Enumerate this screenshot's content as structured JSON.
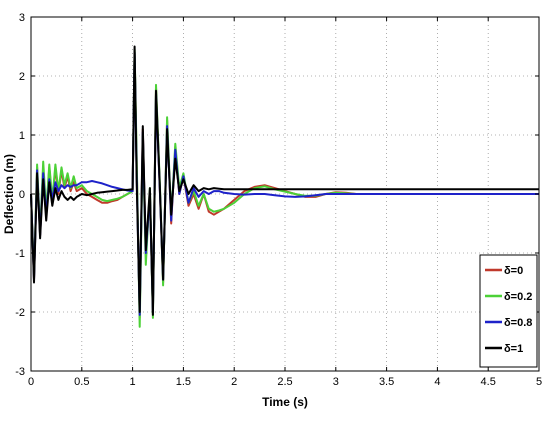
{
  "chart_data": {
    "type": "line",
    "title": "",
    "xlabel": "Time (s)",
    "ylabel": "Deflection (m)",
    "xlim": [
      0,
      5
    ],
    "ylim": [
      -3,
      3
    ],
    "xticks": [
      0,
      0.5,
      1,
      1.5,
      2,
      2.5,
      3,
      3.5,
      4,
      4.5,
      5
    ],
    "xtick_labels": [
      "0",
      "0.5",
      "1",
      "1.5",
      "2",
      "2.5",
      "3",
      "3.5",
      "4",
      "4.5",
      "5"
    ],
    "yticks": [
      -3,
      -2,
      -1,
      0,
      1,
      2,
      3
    ],
    "ytick_labels": [
      "-3",
      "-2",
      "-1",
      "0",
      "1",
      "2",
      "3"
    ],
    "grid": true,
    "legend_position": "bottom-right",
    "series": [
      {
        "name": "δ=0",
        "color": "#c0392b",
        "x": [
          0,
          0.03,
          0.06,
          0.09,
          0.12,
          0.15,
          0.18,
          0.21,
          0.24,
          0.27,
          0.3,
          0.33,
          0.36,
          0.39,
          0.42,
          0.45,
          0.5,
          0.55,
          0.6,
          0.65,
          0.7,
          0.75,
          0.8,
          0.85,
          0.9,
          0.95,
          1.0,
          1.02,
          1.04,
          1.07,
          1.1,
          1.13,
          1.17,
          1.2,
          1.23,
          1.27,
          1.3,
          1.34,
          1.38,
          1.42,
          1.46,
          1.5,
          1.55,
          1.6,
          1.65,
          1.7,
          1.75,
          1.8,
          1.85,
          1.9,
          2.0,
          2.1,
          2.2,
          2.3,
          2.4,
          2.5,
          2.6,
          2.7,
          2.8,
          2.9,
          3.0,
          3.1,
          3.2,
          3.3,
          3.5,
          4.0,
          4.5,
          5.0
        ],
        "y": [
          0,
          -1.45,
          0.45,
          -0.7,
          0.45,
          -0.35,
          0.45,
          -0.15,
          0.45,
          0.0,
          0.4,
          0.1,
          0.3,
          0.05,
          0.2,
          0.05,
          0.1,
          0.0,
          -0.05,
          -0.1,
          -0.15,
          -0.15,
          -0.12,
          -0.1,
          -0.05,
          0.0,
          0.05,
          2.4,
          0.5,
          -2.1,
          1.1,
          -1.0,
          0.0,
          -2.0,
          1.8,
          0.0,
          -1.5,
          1.25,
          -0.5,
          0.8,
          0.0,
          0.3,
          -0.2,
          0.0,
          -0.25,
          0.0,
          -0.3,
          -0.35,
          -0.3,
          -0.25,
          -0.1,
          0.05,
          0.12,
          0.15,
          0.1,
          0.05,
          0.0,
          -0.05,
          -0.05,
          0.0,
          0.03,
          0.02,
          0.0,
          0.0,
          0.0,
          0.0,
          0.0,
          0.0
        ]
      },
      {
        "name": "δ=0.2",
        "color": "#4cd137",
        "x": [
          0,
          0.03,
          0.06,
          0.09,
          0.12,
          0.15,
          0.18,
          0.21,
          0.24,
          0.27,
          0.3,
          0.33,
          0.36,
          0.39,
          0.42,
          0.45,
          0.5,
          0.55,
          0.6,
          0.65,
          0.7,
          0.75,
          0.8,
          0.85,
          0.9,
          0.95,
          1.0,
          1.02,
          1.04,
          1.07,
          1.1,
          1.13,
          1.17,
          1.2,
          1.23,
          1.27,
          1.3,
          1.34,
          1.38,
          1.42,
          1.46,
          1.5,
          1.55,
          1.6,
          1.65,
          1.7,
          1.75,
          1.8,
          1.85,
          1.9,
          2.0,
          2.1,
          2.2,
          2.3,
          2.4,
          2.5,
          2.6,
          2.7,
          2.8,
          2.9,
          3.0,
          3.1,
          3.2,
          3.3,
          3.5,
          4.0,
          4.5,
          5.0
        ],
        "y": [
          0,
          -1.4,
          0.5,
          -0.65,
          0.55,
          -0.3,
          0.5,
          -0.1,
          0.5,
          0.05,
          0.45,
          0.15,
          0.35,
          0.1,
          0.3,
          0.1,
          0.15,
          0.05,
          0.0,
          -0.05,
          -0.1,
          -0.12,
          -0.1,
          -0.08,
          -0.05,
          0.0,
          0.05,
          2.45,
          0.6,
          -2.25,
          1.0,
          -1.2,
          0.1,
          -2.1,
          1.85,
          0.1,
          -1.55,
          1.3,
          -0.4,
          0.85,
          0.1,
          0.35,
          -0.15,
          0.05,
          -0.2,
          0.0,
          -0.25,
          -0.3,
          -0.28,
          -0.25,
          -0.15,
          0.0,
          0.1,
          0.13,
          0.08,
          0.04,
          0.0,
          -0.03,
          -0.03,
          0.0,
          0.02,
          0.01,
          0.0,
          0.0,
          0.0,
          0.0,
          0.0,
          0.0
        ]
      },
      {
        "name": "δ=0.8",
        "color": "#1e22c9",
        "x": [
          0,
          0.03,
          0.06,
          0.09,
          0.12,
          0.15,
          0.18,
          0.21,
          0.24,
          0.27,
          0.3,
          0.33,
          0.36,
          0.39,
          0.42,
          0.45,
          0.5,
          0.55,
          0.6,
          0.65,
          0.7,
          0.75,
          0.8,
          0.85,
          0.9,
          0.95,
          1.0,
          1.02,
          1.04,
          1.07,
          1.1,
          1.13,
          1.17,
          1.2,
          1.23,
          1.27,
          1.3,
          1.34,
          1.38,
          1.42,
          1.46,
          1.5,
          1.55,
          1.6,
          1.65,
          1.7,
          1.75,
          1.8,
          1.85,
          1.9,
          2.0,
          2.1,
          2.2,
          2.3,
          2.4,
          2.5,
          2.6,
          2.7,
          2.8,
          2.9,
          3.0,
          3.1,
          3.2,
          3.3,
          3.5,
          4.0,
          4.5,
          5.0
        ],
        "y": [
          0,
          -1.45,
          0.4,
          -0.7,
          0.35,
          -0.35,
          0.25,
          -0.1,
          0.2,
          0.05,
          0.15,
          0.1,
          0.15,
          0.12,
          0.15,
          0.15,
          0.2,
          0.2,
          0.22,
          0.2,
          0.18,
          0.15,
          0.12,
          0.1,
          0.08,
          0.06,
          0.05,
          2.4,
          0.3,
          -2.05,
          1.05,
          -1.0,
          0.0,
          -2.0,
          1.7,
          0.0,
          -1.45,
          1.15,
          -0.45,
          0.75,
          0.0,
          0.3,
          -0.15,
          0.1,
          -0.05,
          0.05,
          0.0,
          0.05,
          0.05,
          0.02,
          0.0,
          -0.01,
          0.0,
          0.0,
          -0.02,
          -0.04,
          -0.05,
          -0.04,
          -0.02,
          0.0,
          0.0,
          0.0,
          0.0,
          0.0,
          0.0,
          0.0,
          0.0,
          0.0
        ]
      },
      {
        "name": "δ=1",
        "color": "#000000",
        "x": [
          0,
          0.03,
          0.06,
          0.09,
          0.12,
          0.15,
          0.18,
          0.21,
          0.24,
          0.27,
          0.3,
          0.33,
          0.36,
          0.39,
          0.42,
          0.45,
          0.5,
          0.55,
          0.6,
          0.65,
          0.7,
          0.75,
          0.8,
          0.85,
          0.9,
          0.95,
          1.0,
          1.02,
          1.04,
          1.07,
          1.1,
          1.13,
          1.17,
          1.2,
          1.23,
          1.27,
          1.3,
          1.34,
          1.38,
          1.42,
          1.46,
          1.5,
          1.55,
          1.6,
          1.65,
          1.7,
          1.75,
          1.8,
          1.85,
          1.9,
          2.0,
          2.1,
          2.2,
          2.3,
          2.4,
          2.5,
          2.6,
          2.7,
          2.8,
          2.9,
          3.0,
          3.1,
          3.2,
          3.3,
          3.5,
          4.0,
          4.5,
          5.0
        ],
        "y": [
          0,
          -1.5,
          0.35,
          -0.75,
          0.25,
          -0.45,
          0.2,
          -0.2,
          0.1,
          -0.1,
          0.05,
          -0.05,
          -0.1,
          -0.05,
          -0.1,
          -0.05,
          0.0,
          -0.02,
          0.0,
          0.02,
          0.03,
          0.04,
          0.05,
          0.06,
          0.07,
          0.07,
          0.08,
          2.5,
          0.2,
          -2.0,
          1.15,
          -0.95,
          0.1,
          -2.05,
          1.75,
          0.05,
          -1.45,
          1.1,
          -0.35,
          0.6,
          0.05,
          0.25,
          0.0,
          0.15,
          0.05,
          0.1,
          0.08,
          0.1,
          0.09,
          0.08,
          0.08,
          0.08,
          0.08,
          0.08,
          0.08,
          0.08,
          0.08,
          0.08,
          0.08,
          0.08,
          0.08,
          0.08,
          0.08,
          0.08,
          0.08,
          0.08,
          0.08,
          0.08
        ]
      }
    ]
  }
}
